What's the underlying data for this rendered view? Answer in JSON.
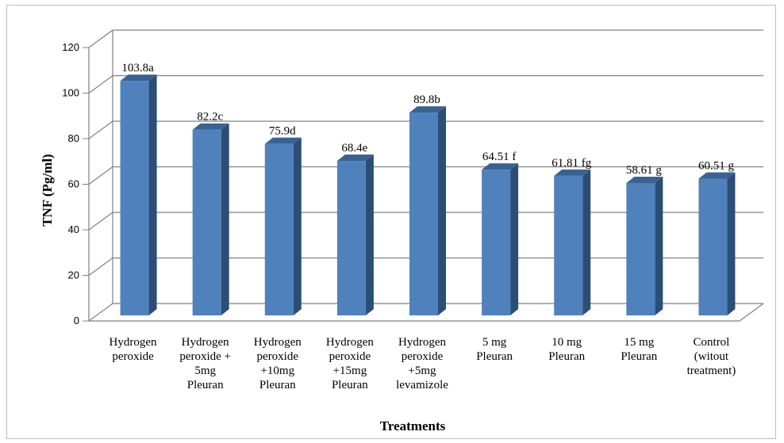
{
  "chart_data": {
    "type": "bar",
    "style": "3d-column",
    "categories": [
      [
        "Hydrogen",
        "peroxide"
      ],
      [
        "Hydrogen",
        "peroxide +",
        "5mg",
        "Pleuran"
      ],
      [
        "Hydrogen",
        "peroxide",
        "+10mg",
        "Pleuran"
      ],
      [
        "Hydrogen",
        "peroxide",
        "+15mg",
        "Pleuran"
      ],
      [
        "Hydrogen",
        "peroxide",
        "+5mg",
        "levamizole"
      ],
      [
        "5 mg",
        "Pleuran"
      ],
      [
        "10 mg",
        "Pleuran"
      ],
      [
        "15 mg",
        "Pleuran"
      ],
      [
        "Control",
        "(witout",
        "treatment)"
      ]
    ],
    "values": [
      103.8,
      82.2,
      75.9,
      68.4,
      89.8,
      64.51,
      61.81,
      58.61,
      60.51
    ],
    "data_labels": [
      "103.8a",
      "82.2c",
      "75.9d",
      "68.4e",
      "89.8b",
      "64.51 f",
      "61.81 fg",
      "58.61 g",
      "60.51 g"
    ],
    "xlabel": "Treatments",
    "ylabel": "TNF (Pg/ml)",
    "ylim": [
      0,
      120
    ],
    "yticks": [
      "0",
      "20",
      "40",
      "60",
      "80",
      "100",
      "120"
    ],
    "grid": true,
    "legend": "none",
    "colors": {
      "bar_front": "#4f81bd",
      "bar_side": "#2c4d75",
      "bar_top": "#3a6291",
      "grid": "#808080",
      "frame": "#bdbdbd"
    }
  }
}
